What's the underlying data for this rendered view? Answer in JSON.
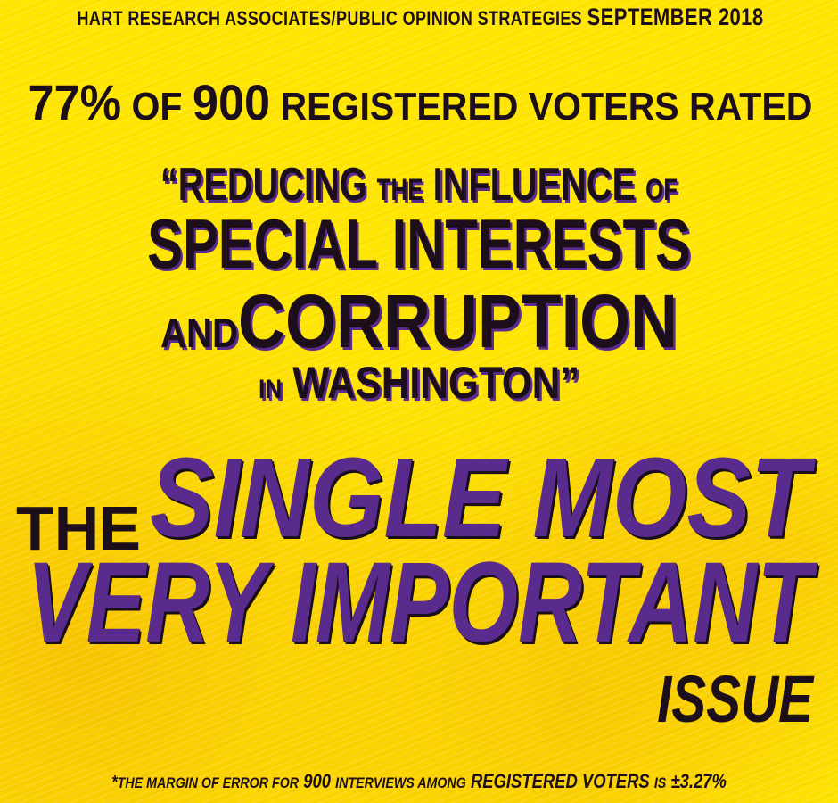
{
  "poster": {
    "source_line": {
      "text_1": "Hart Research Associates/Public Opinion Strategies",
      "text_2": "September 2018"
    },
    "stat_line": {
      "percent": "77%",
      "of": "of",
      "count": "900",
      "rest": "registered voters rated"
    },
    "quote": {
      "open_mark": "“",
      "word_reducing": "Reducing",
      "word_the": "the",
      "word_influence": "influence",
      "word_of": "of",
      "line_special_interests": "special interests",
      "word_and": "and",
      "word_corruption": "corruption",
      "word_in": "in",
      "word_washington": "Washington",
      "close_mark": "”"
    },
    "headline": {
      "word_the": "The",
      "phrase_single_most": "single most",
      "phrase_very_important": "very important",
      "word_issue": "issue"
    },
    "footnote": {
      "asterisk": "*",
      "text_1": "the margin of error for",
      "count": "900",
      "text_2": "interviews among",
      "registered_voters": "Registered Voters",
      "text_3": "is",
      "margin": "±3.27%"
    },
    "colors": {
      "background": "#ffe600",
      "dark_text": "#1c0f1b",
      "purple_accent": "#582b8c"
    }
  }
}
